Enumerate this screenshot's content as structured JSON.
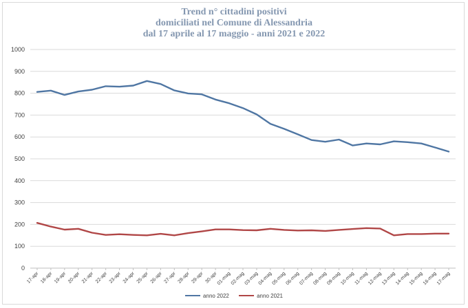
{
  "chart_data": {
    "type": "line",
    "title": [
      "Trend n° cittadini positivi",
      "domiciliati nel Comune di Alessandria",
      "dal 17 aprile al 17 maggio - anni 2021 e 2022"
    ],
    "categories": [
      "17-apr",
      "18-apr",
      "19-apr",
      "20-apr",
      "21-apr",
      "22-apr",
      "23-apr",
      "24-apr",
      "25-apr",
      "26-apr",
      "27-apr",
      "28-apr",
      "29-apr",
      "30-apr",
      "01-mag",
      "02-mag",
      "03-mag",
      "04-mag",
      "05-mag",
      "06-mag",
      "07-mag",
      "08-mag",
      "09-mag",
      "10-mag",
      "11-mag",
      "12-mag",
      "13-mag",
      "14-mag",
      "15-mag",
      "16-mag",
      "17-mag"
    ],
    "series": [
      {
        "name": "anno 2022",
        "color": "#4f76a3",
        "values": [
          806,
          812,
          792,
          808,
          816,
          832,
          830,
          835,
          856,
          842,
          813,
          799,
          795,
          771,
          754,
          732,
          703,
          660,
          637,
          612,
          586,
          578,
          588,
          561,
          570,
          566,
          580,
          576,
          570,
          552,
          533
        ]
      },
      {
        "name": "anno 2021",
        "color": "#b04646",
        "values": [
          207,
          190,
          176,
          180,
          162,
          152,
          155,
          152,
          150,
          157,
          150,
          160,
          168,
          177,
          177,
          174,
          173,
          180,
          175,
          172,
          173,
          170,
          175,
          179,
          183,
          181,
          150,
          156,
          156,
          158,
          158
        ]
      }
    ],
    "ylim": [
      0,
      1000
    ],
    "yticks": [
      "0",
      "100",
      "200",
      "300",
      "400",
      "500",
      "600",
      "700",
      "800",
      "900",
      "1000"
    ],
    "grid": true,
    "legend": "bottom",
    "xlabel": "",
    "ylabel": ""
  }
}
